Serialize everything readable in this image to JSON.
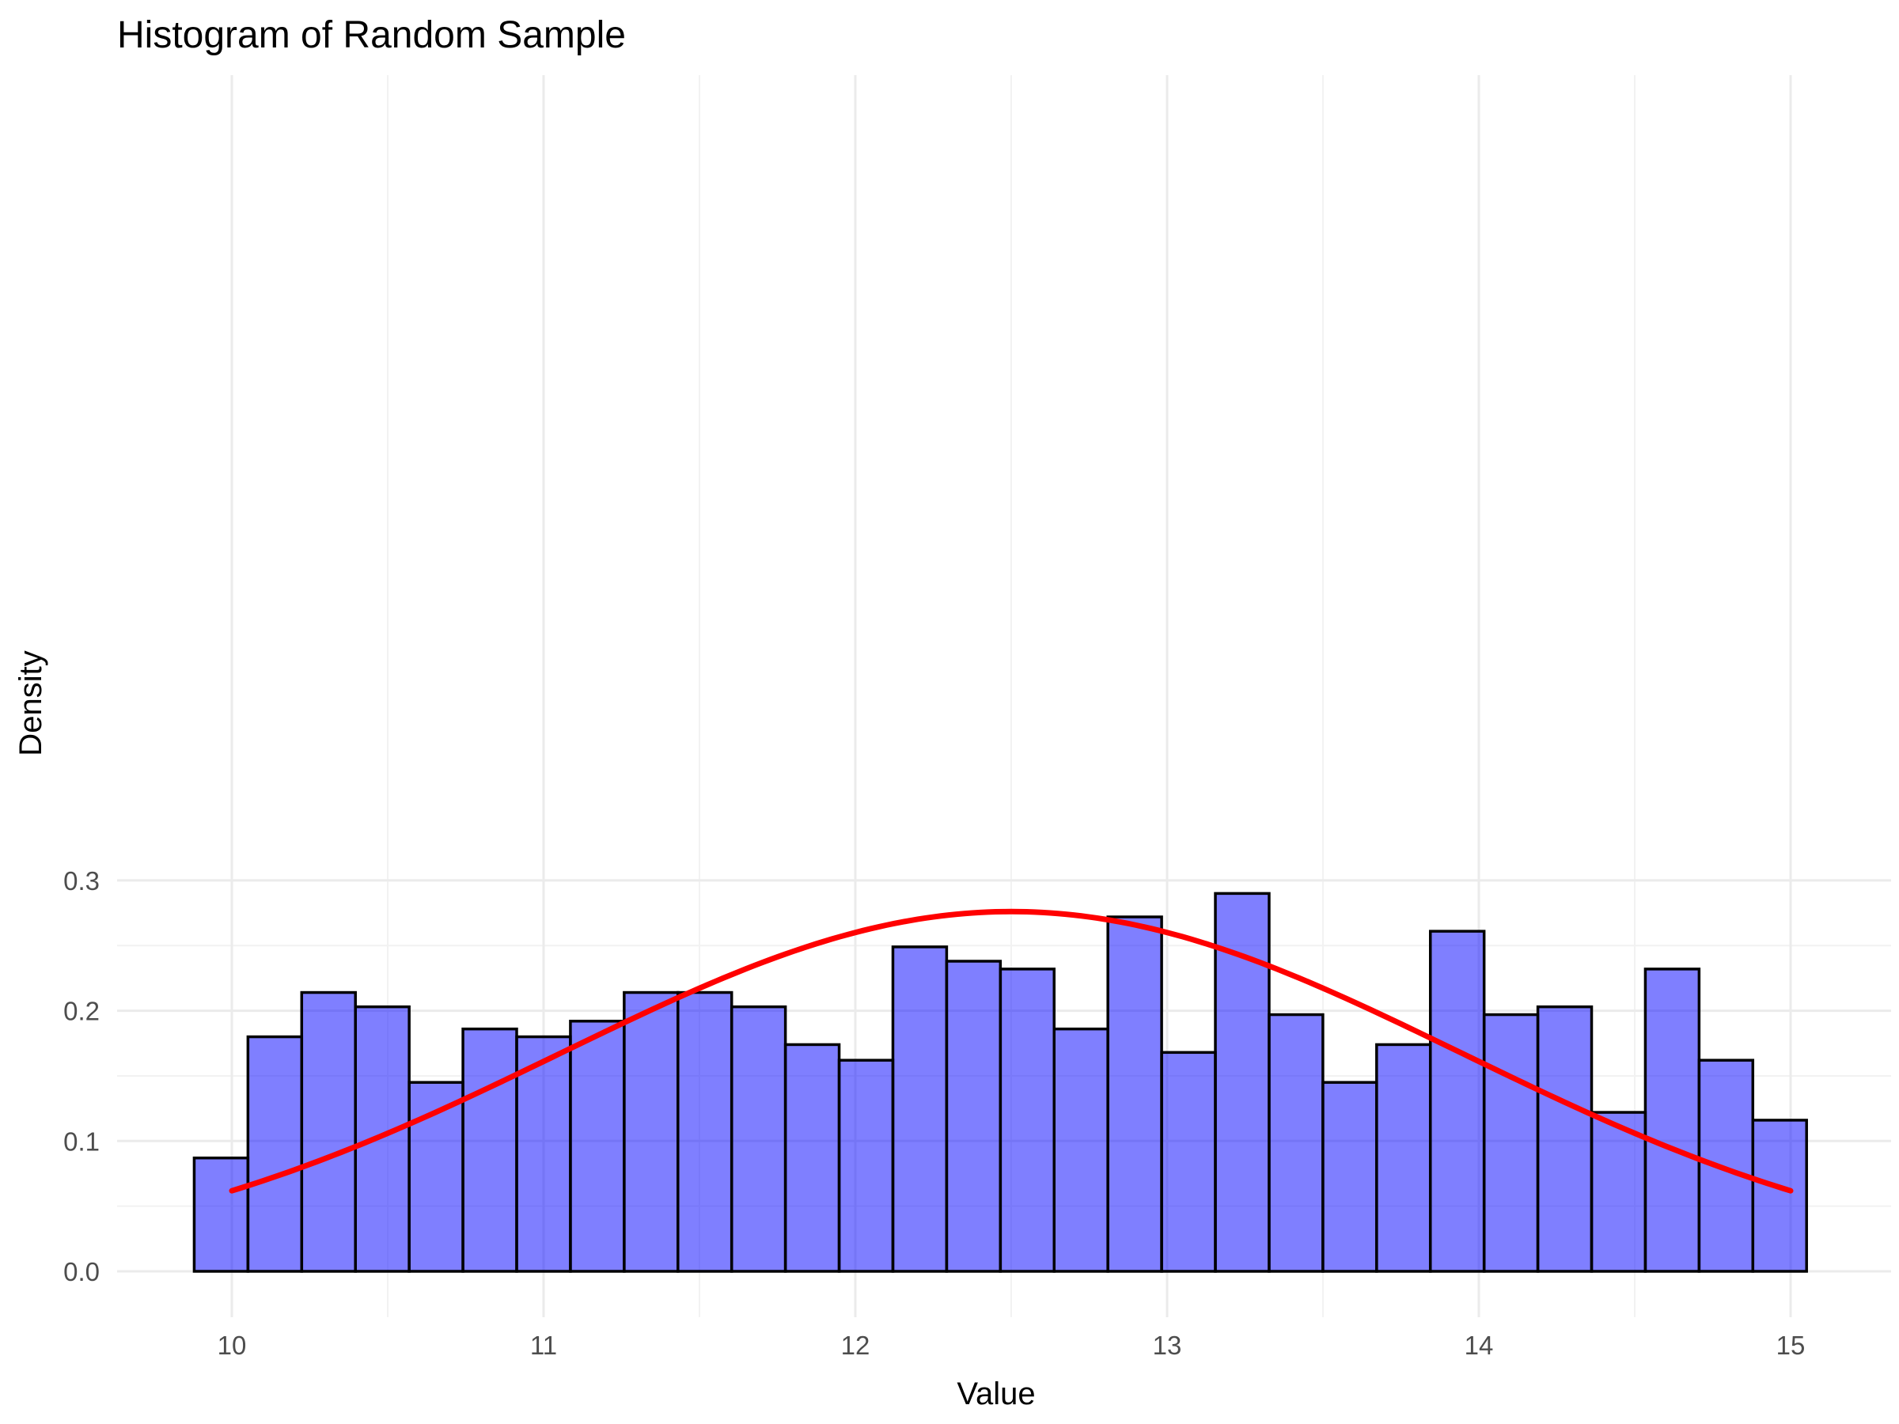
{
  "chart_data": {
    "type": "bar",
    "title": "Histogram of Random Sample",
    "xlabel": "Value",
    "ylabel": "Density",
    "x_ticks": [
      "10",
      "11",
      "12",
      "13",
      "14",
      "15"
    ],
    "y_ticks": [
      "0.0",
      "0.1",
      "0.2",
      "0.3"
    ],
    "xlim": [
      9.6,
      15.3
    ],
    "ylim": [
      -0.012,
      0.305
    ],
    "grid": true,
    "bins": {
      "start": 9.8793,
      "width": 0.1724,
      "density": [
        0.087,
        0.18,
        0.214,
        0.203,
        0.145,
        0.186,
        0.18,
        0.192,
        0.214,
        0.214,
        0.203,
        0.174,
        0.162,
        0.249,
        0.238,
        0.232,
        0.186,
        0.272,
        0.168,
        0.29,
        0.197,
        0.145,
        0.174,
        0.261,
        0.197,
        0.203,
        0.122,
        0.232,
        0.162,
        0.116
      ]
    },
    "curve": {
      "type": "normal_density",
      "x_range": [
        10,
        15
      ],
      "mean": 12.5,
      "sd": 1.445
    },
    "colors": {
      "bar_fill": "#0000ff",
      "bar_fill_opacity": 0.5,
      "bar_outline": "#000000",
      "curve": "#ff0000",
      "grid": "#ebebeb"
    }
  }
}
